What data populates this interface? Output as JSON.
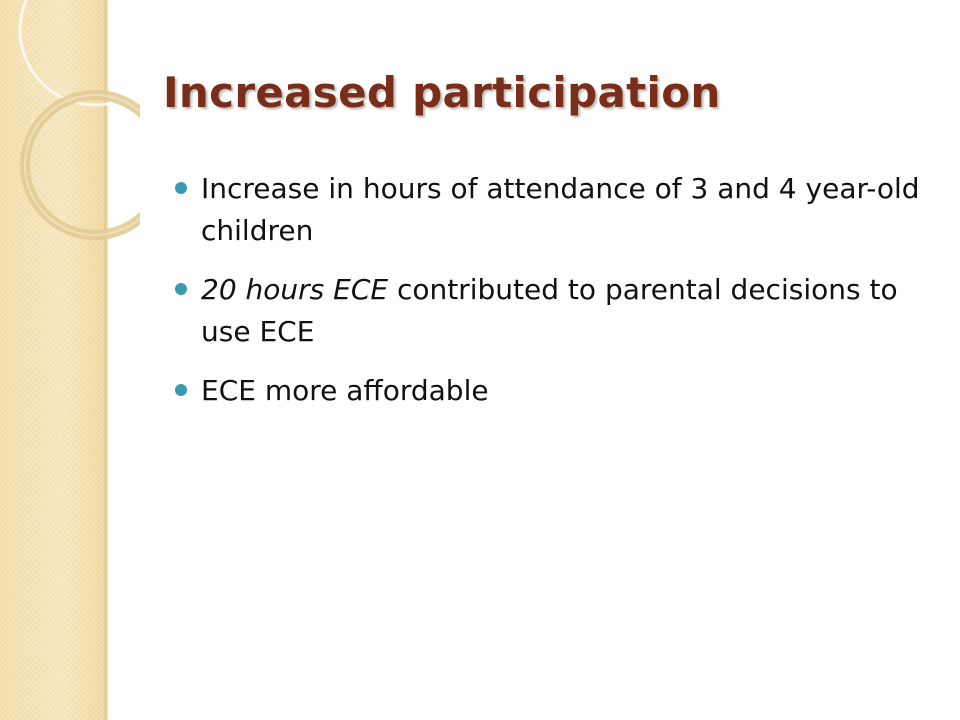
{
  "slide": {
    "title": "Increased participation",
    "bullets": [
      {
        "italic_prefix": "",
        "text": "Increase in hours of attendance of 3 and 4 year-old children"
      },
      {
        "italic_prefix": "20 hours ECE",
        "text": " contributed to parental decisions to use ECE"
      },
      {
        "italic_prefix": "",
        "text": "ECE more affordable"
      }
    ]
  },
  "theme": {
    "title_color": "#7a2d18",
    "bullet_color": "#3a9bb0",
    "band_color": "#f5e3b3",
    "text_color": "#111111"
  }
}
